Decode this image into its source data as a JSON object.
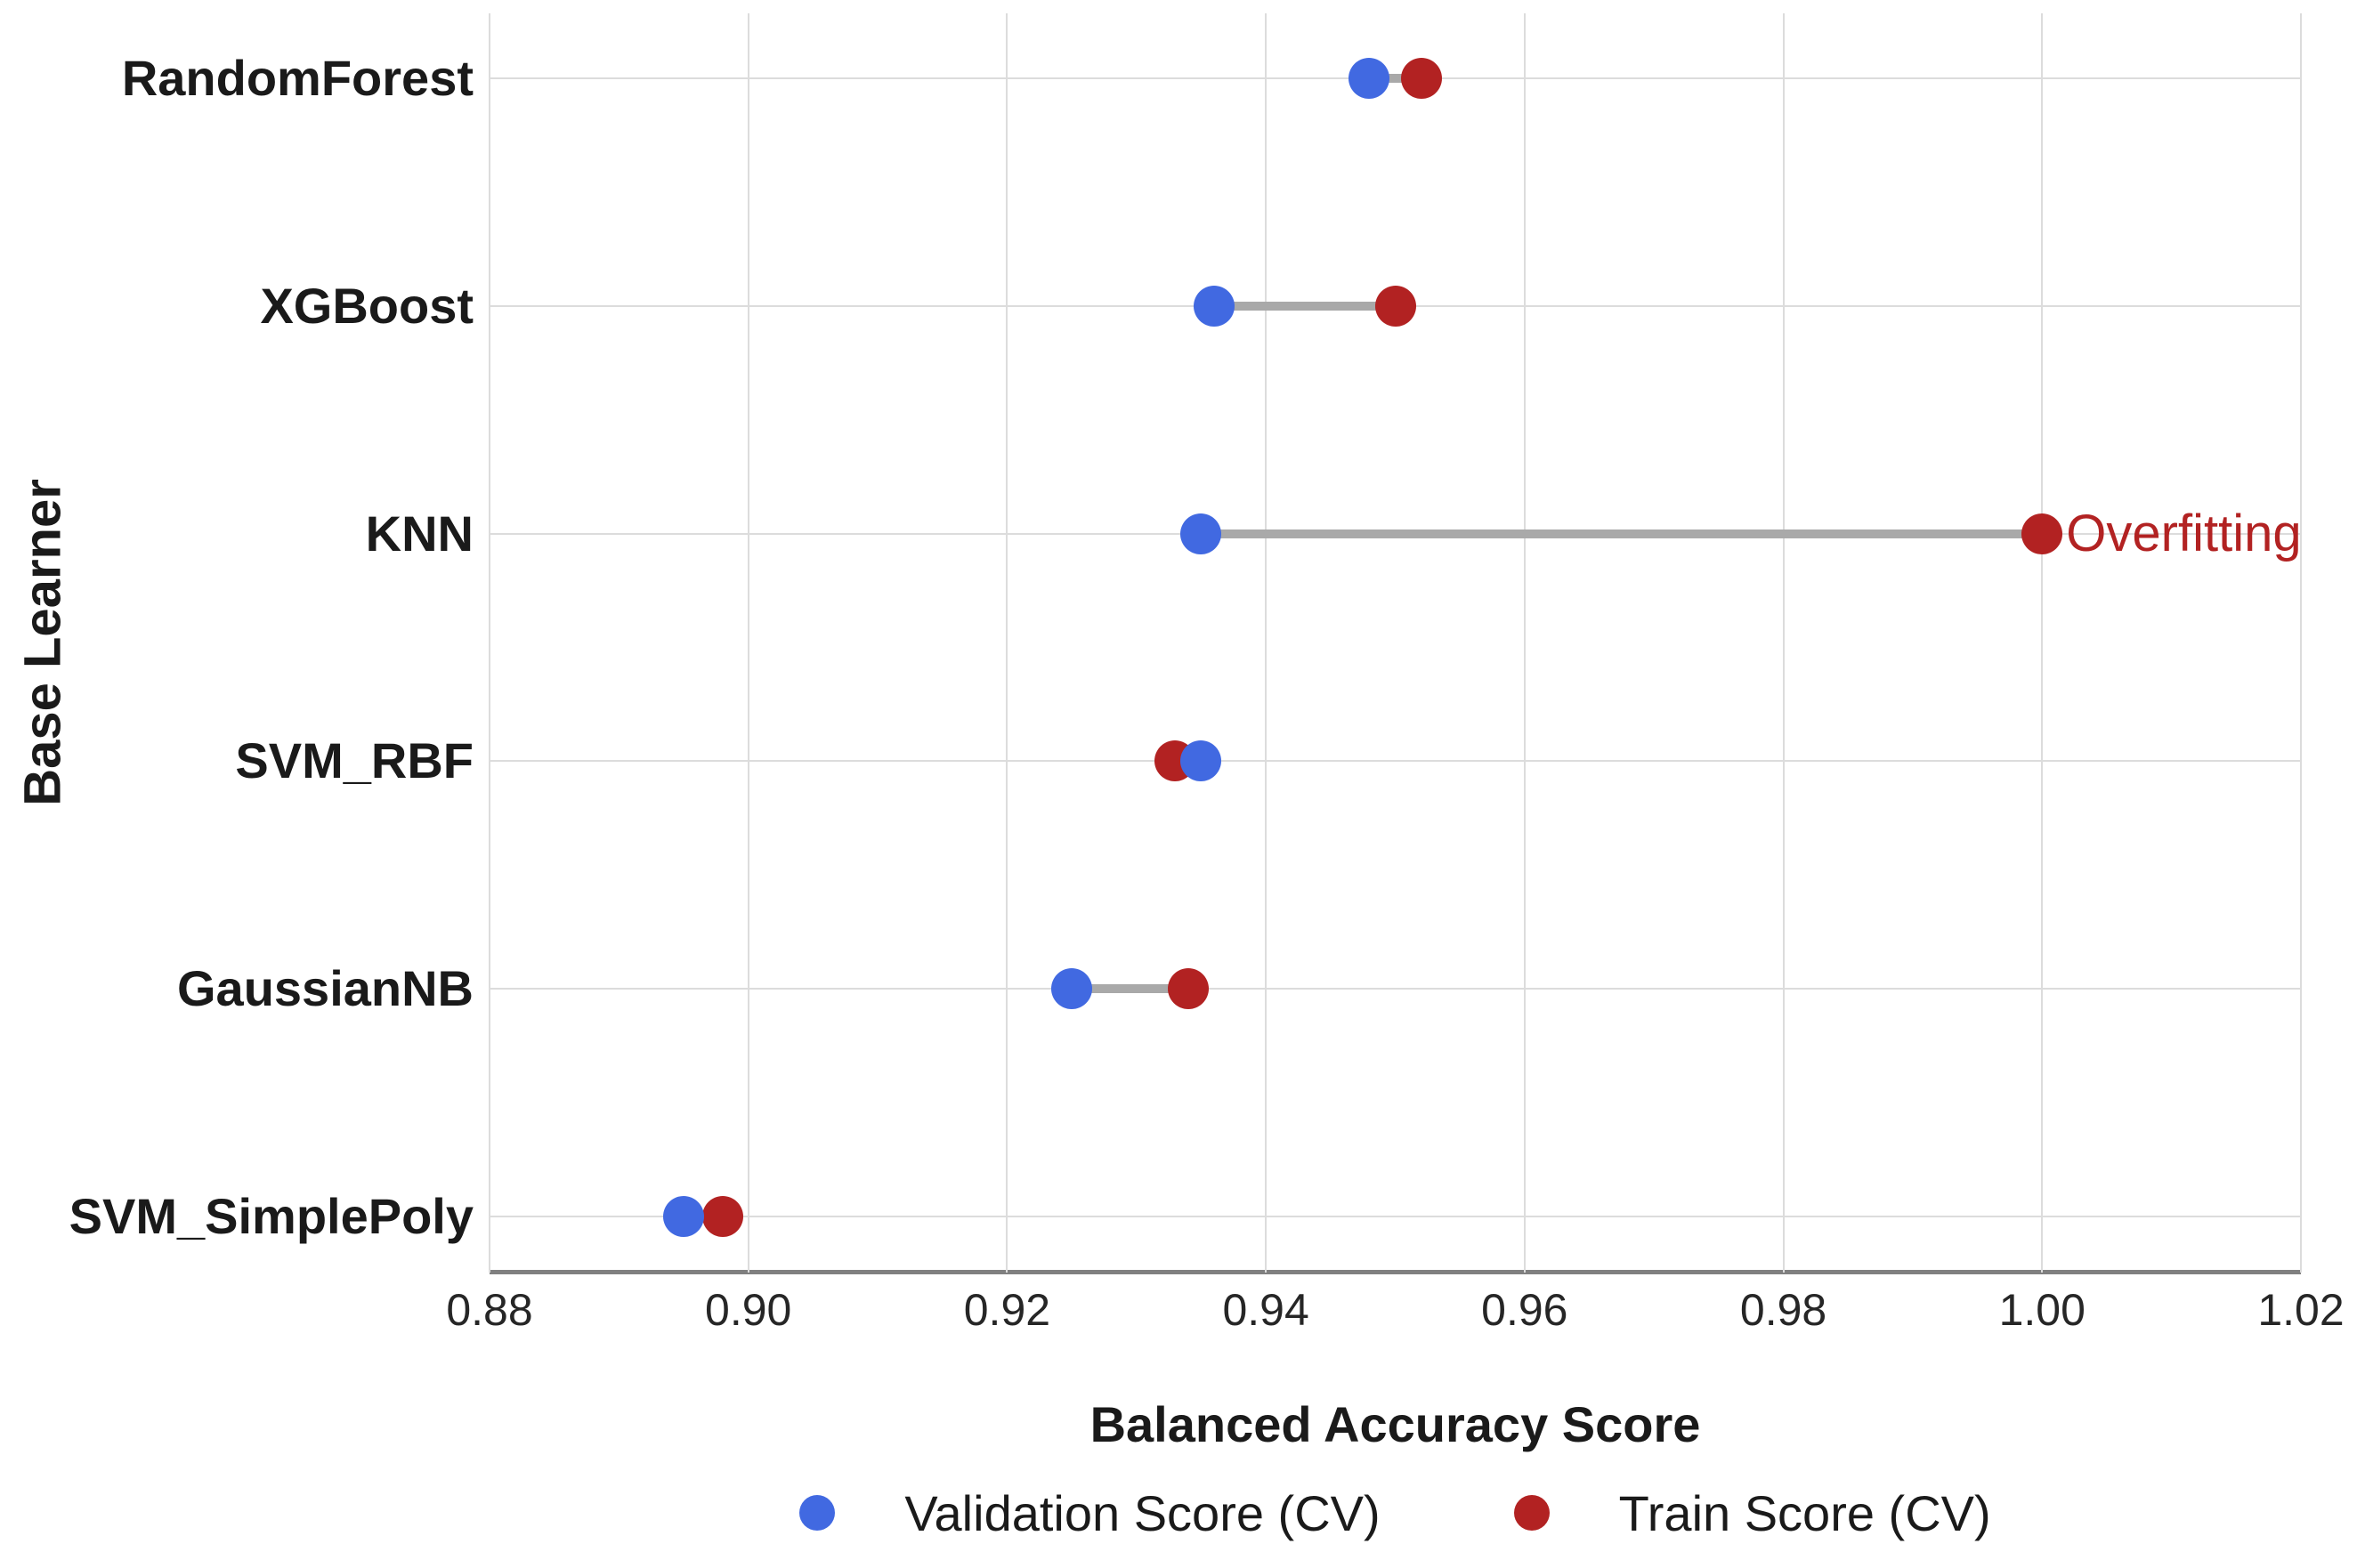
{
  "chart_data": {
    "type": "scatter",
    "subtype": "horizontal-dumbbell",
    "categories": [
      "RandomForest",
      "XGBoost",
      "KNN",
      "SVM_RBF",
      "GaussianNB",
      "SVM_SimplePoly"
    ],
    "series": [
      {
        "name": "Validation Score (CV)",
        "color": "#4169E1",
        "values": [
          0.948,
          0.936,
          0.935,
          0.935,
          0.925,
          0.895
        ]
      },
      {
        "name": "Train Score (CV)",
        "color": "#B22222",
        "values": [
          0.952,
          0.95,
          1.0,
          0.933,
          0.934,
          0.898
        ]
      }
    ],
    "title": "",
    "xlabel": "Balanced Accuracy Score",
    "ylabel": "Base Learner",
    "xlim": [
      0.88,
      1.02
    ],
    "xticks": [
      0.88,
      0.9,
      0.92,
      0.94,
      0.96,
      0.98,
      1.0,
      1.02
    ],
    "xtick_labels": [
      "0.88",
      "0.90",
      "0.92",
      "0.94",
      "0.96",
      "0.98",
      "1.00",
      "1.02"
    ],
    "grid": true,
    "legend_position": "bottom",
    "annotation": {
      "text": "Overfitting",
      "category": "KNN",
      "x": 1.0,
      "color": "#B22222"
    },
    "connector_color": "#A9A9A9",
    "gridline_color": "#DCDCDC",
    "axis_line_color": "#808080"
  }
}
